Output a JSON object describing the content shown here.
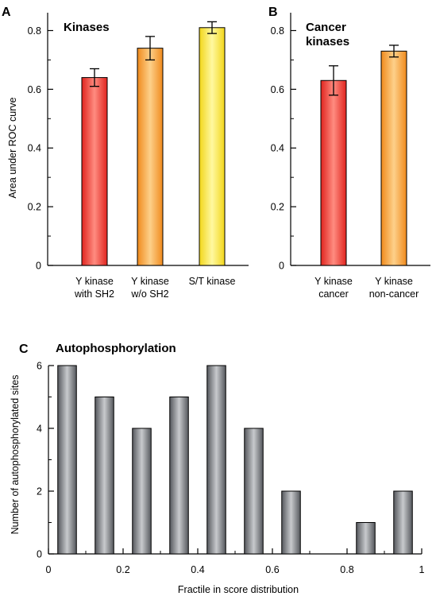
{
  "figure": {
    "panels": [
      {
        "letter": "A",
        "title_lines": [
          "Kinases"
        ],
        "ylabel": "Area under ROC curve",
        "xlabel": ""
      },
      {
        "letter": "B",
        "title_lines": [
          "Cancer",
          "kinases"
        ],
        "ylabel": "",
        "xlabel": ""
      },
      {
        "letter": "C",
        "title_lines": [
          "Autophosphorylation"
        ],
        "ylabel": "Number of autophosphorylated sites",
        "xlabel": "Fractile in score distribution"
      }
    ]
  },
  "chart_data": [
    {
      "type": "bar",
      "title": "Kinases",
      "xlabel": "",
      "ylabel": "Area under ROC curve",
      "categories": [
        [
          "Y kinase",
          "with SH2"
        ],
        [
          "Y kinase",
          "w/o SH2"
        ],
        [
          "S/T kinase"
        ]
      ],
      "values": [
        0.64,
        0.74,
        0.81
      ],
      "errors": [
        0.03,
        0.04,
        0.02
      ],
      "colors": [
        [
          "#e0241f",
          "#ff8c80"
        ],
        [
          "#f08a1c",
          "#fdd08a"
        ],
        [
          "#f2d71a",
          "#fff8a0"
        ]
      ],
      "ylim": [
        0,
        0.85
      ],
      "yticks": [
        0,
        0.2,
        0.4,
        0.6,
        0.8
      ],
      "ytick_labels": [
        "0",
        "0.2",
        "0.4",
        "0.6",
        "0.8"
      ],
      "grid": false,
      "legend": "none"
    },
    {
      "type": "bar",
      "title": "Cancer kinases",
      "xlabel": "",
      "ylabel": "",
      "categories": [
        [
          "Y kinase",
          "cancer"
        ],
        [
          "Y kinase",
          "non-cancer"
        ]
      ],
      "values": [
        0.63,
        0.73
      ],
      "errors": [
        0.05,
        0.02
      ],
      "colors": [
        [
          "#e0241f",
          "#ff8c80"
        ],
        [
          "#f08a1c",
          "#fdd08a"
        ]
      ],
      "ylim": [
        0,
        0.85
      ],
      "yticks": [
        0,
        0.2,
        0.4,
        0.6,
        0.8
      ],
      "ytick_labels": [
        "0",
        "0.2",
        "0.4",
        "0.6",
        "0.8"
      ],
      "grid": false,
      "legend": "none"
    },
    {
      "type": "bar",
      "title": "Autophosphorylation",
      "xlabel": "Fractile in score distribution",
      "ylabel": "Number of autophosphorylated sites",
      "x": [
        0.05,
        0.15,
        0.25,
        0.35,
        0.45,
        0.55,
        0.65,
        0.75,
        0.85,
        0.95
      ],
      "values": [
        6,
        5,
        4,
        5,
        6,
        4,
        2,
        0,
        1,
        2
      ],
      "bar_width": 0.05,
      "colors": [
        "#55585d",
        "#c8cacd"
      ],
      "xlim": [
        0,
        1
      ],
      "xticks": [
        0,
        0.2,
        0.4,
        0.6,
        0.8,
        1
      ],
      "xtick_labels": [
        "0",
        "0.2",
        "0.4",
        "0.6",
        "0.8",
        "1"
      ],
      "ylim": [
        0,
        6
      ],
      "yticks": [
        0,
        2,
        4,
        6
      ],
      "ytick_labels": [
        "0",
        "2",
        "4",
        "6"
      ],
      "grid": false,
      "legend": "none"
    }
  ]
}
